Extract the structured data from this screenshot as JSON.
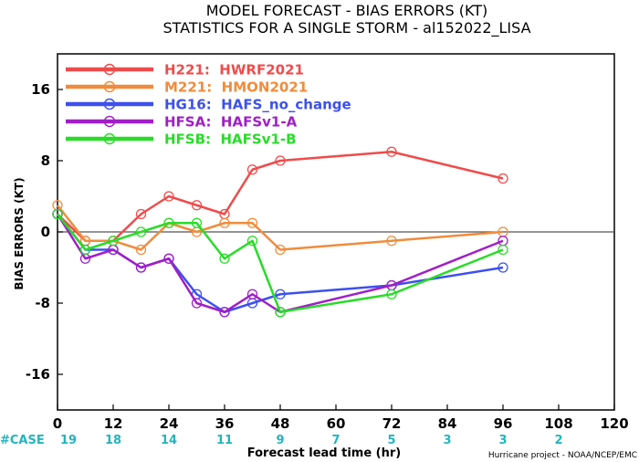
{
  "chart_data": {
    "type": "line",
    "title": "MODEL FORECAST - BIAS ERRORS (KT)",
    "subtitle": "STATISTICS FOR A SINGLE STORM - al152022_LISA",
    "xlabel": "Forecast lead time (hr)",
    "ylabel": "BIAS ERRORS (KT)",
    "credit": "Hurricane project - NOAA/NCEP/EMC",
    "xlim": [
      0,
      120
    ],
    "ylim": [
      -20,
      20
    ],
    "xticks": [
      "0",
      "12",
      "24",
      "36",
      "48",
      "60",
      "72",
      "84",
      "96",
      "108",
      "120"
    ],
    "yticks": [
      "16",
      "8",
      "0",
      "-8",
      "-16"
    ],
    "case_label": "#CASE",
    "cases": [
      "19",
      "18",
      "14",
      "11",
      "9",
      "7",
      "5",
      "3",
      "3",
      "2"
    ],
    "legend_position": "top-left",
    "series": [
      {
        "name": "H221:  HWRF2021",
        "color": "#f04b4b",
        "x": [
          0,
          6,
          12,
          18,
          24,
          30,
          36,
          42,
          48,
          72,
          96
        ],
        "y": [
          2,
          -1,
          -1,
          2,
          4,
          3,
          2,
          7,
          8,
          9,
          6
        ]
      },
      {
        "name": "M221:  HMON2021",
        "color": "#f08c3c",
        "x": [
          0,
          6,
          12,
          18,
          24,
          30,
          36,
          42,
          48,
          72,
          96
        ],
        "y": [
          3,
          -1,
          -1,
          -2,
          1,
          0,
          1,
          1,
          -2,
          -1,
          0
        ]
      },
      {
        "name": "HG16:  HAFS_no_change",
        "color": "#3c50f0",
        "x": [
          0,
          6,
          12,
          18,
          24,
          30,
          36,
          42,
          48,
          72,
          96
        ],
        "y": [
          2,
          -2,
          -2,
          -4,
          -3,
          -7,
          -9,
          -8,
          -7,
          -6,
          -4
        ]
      },
      {
        "name": "HFSA:  HAFSv1-A",
        "color": "#a01ec8",
        "x": [
          0,
          6,
          12,
          18,
          24,
          30,
          36,
          42,
          48,
          72,
          96
        ],
        "y": [
          2,
          -3,
          -2,
          -4,
          -3,
          -8,
          -9,
          -7,
          -9,
          -6,
          -1
        ]
      },
      {
        "name": "HFSB:  HAFSv1-B",
        "color": "#28dc28",
        "x": [
          0,
          6,
          12,
          18,
          24,
          30,
          36,
          42,
          48,
          72,
          96
        ],
        "y": [
          2,
          -2,
          -1,
          0,
          1,
          1,
          -3,
          -1,
          -9,
          -7,
          -2
        ]
      }
    ]
  }
}
